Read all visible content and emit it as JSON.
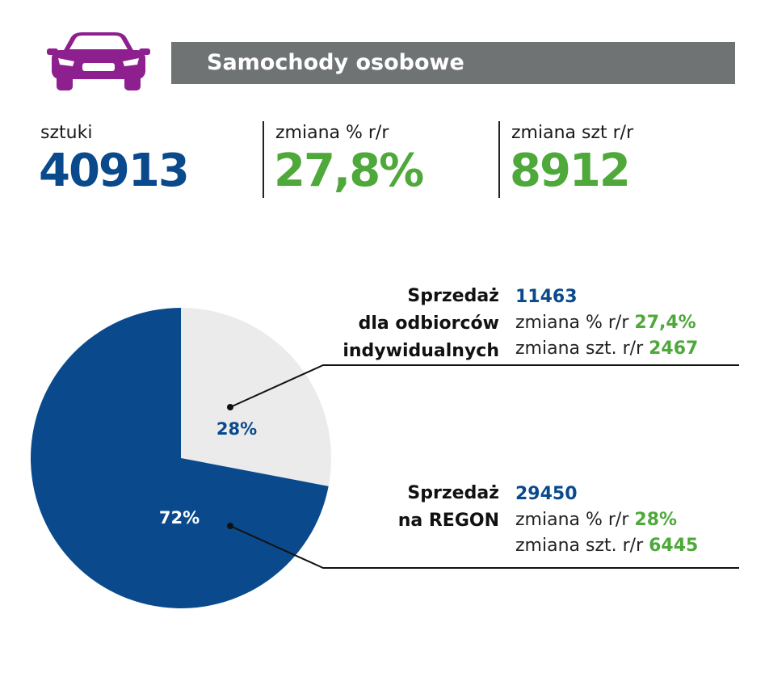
{
  "colors": {
    "brand_purple": "#8e1f8e",
    "navy": "#0a4a8c",
    "green": "#4ea83a",
    "header_gray": "#707374",
    "pie_light": "#ebebeb"
  },
  "header": {
    "icon": "car-icon",
    "title": "Samochody osobowe"
  },
  "stats": [
    {
      "label": "sztuki",
      "value": "40913",
      "color": "#0a4a8c"
    },
    {
      "label": "zmiana % r/r",
      "value": "27,8%",
      "color": "#4ea83a"
    },
    {
      "label": "zmiana szt r/r",
      "value": "8912",
      "color": "#4ea83a"
    }
  ],
  "chart_data": {
    "type": "pie",
    "slices": [
      {
        "label": "28%",
        "value": 28,
        "color": "#ebebeb",
        "label_color": "#0a4a8c"
      },
      {
        "label": "72%",
        "value": 72,
        "color": "#0a4a8c",
        "label_color": "#ffffff"
      }
    ]
  },
  "info_blocks": [
    {
      "title_lines": [
        "Sprzedaż",
        "dla odbiorców",
        "indywidualnych"
      ],
      "total": "11463",
      "pct_label": "zmiana % r/r",
      "pct_value": "27,4%",
      "qty_label": "zmiana szt. r/r",
      "qty_value": "2467"
    },
    {
      "title_lines": [
        "Sprzedaż",
        "na REGON"
      ],
      "total": "29450",
      "pct_label": "zmiana % r/r",
      "pct_value": "28%",
      "qty_label": "zmiana szt. r/r",
      "qty_value": "6445"
    }
  ]
}
